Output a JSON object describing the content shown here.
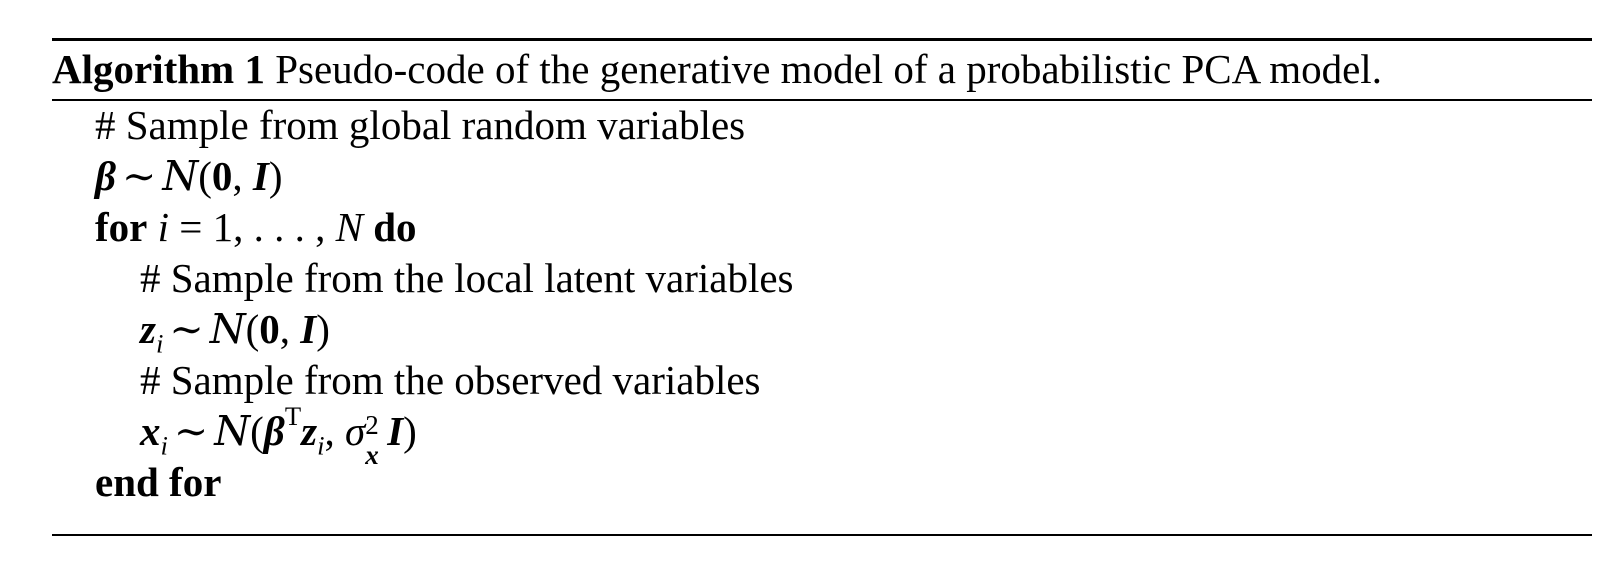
{
  "algorithm": {
    "label": "Algorithm 1",
    "caption": "Pseudo-code of the generative model of a probabilistic PCA model.",
    "lines": {
      "c1": "# Sample from global random variables",
      "beta_sym": "β",
      "sim": "∼",
      "normal": "N",
      "zero": "0",
      "ident": "I",
      "for_kw": "for",
      "loop_var": "i",
      "loop_eq": "=",
      "loop_range": "1, . . . , ",
      "loop_N": "N",
      "do_kw": "do",
      "c2": "# Sample from the local latent variables",
      "z_sym": "z",
      "sub_i": "i",
      "c3": "# Sample from the observed variables",
      "x_sym": "x",
      "transpose": "T",
      "sigma": "σ",
      "sq": "2",
      "end_for": "end for"
    }
  }
}
